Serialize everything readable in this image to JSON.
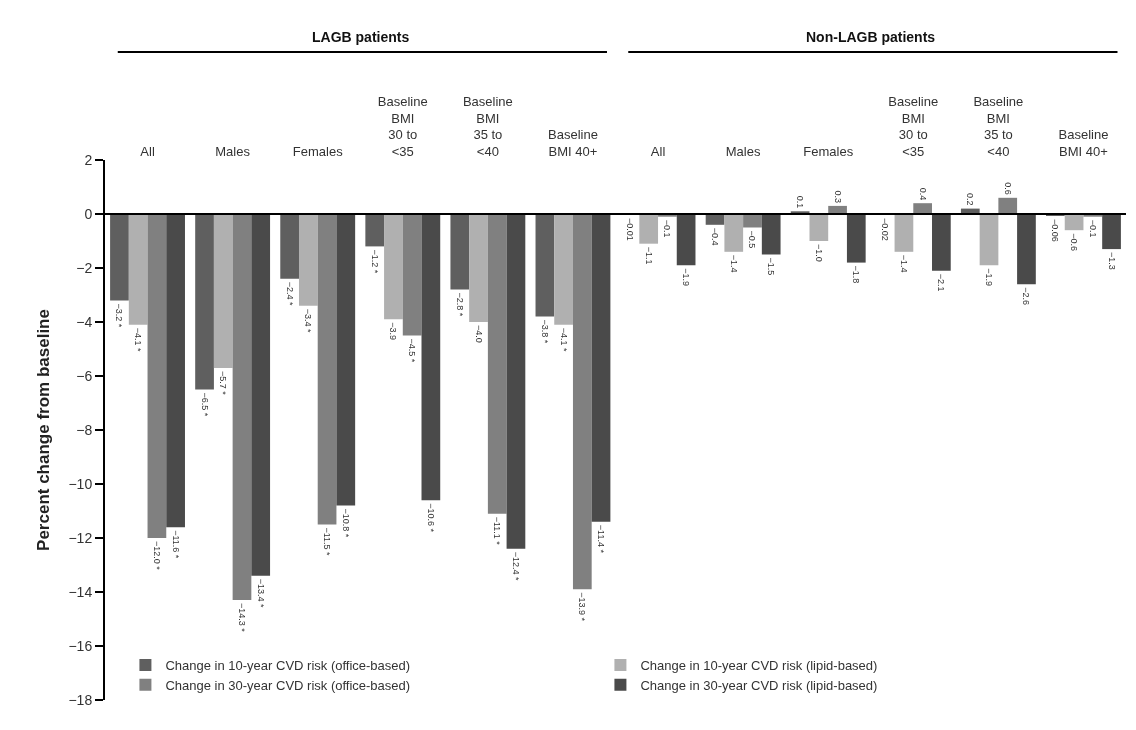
{
  "chart_data": {
    "type": "bar",
    "ylabel": "Percent change from baseline",
    "categories": [
      "All",
      "Males",
      "Females",
      "Baseline\nBMI\n30 to\n<35",
      "Baseline\nBMI\n35 to\n<40",
      "Baseline\nBMI 40+",
      "All",
      "Males",
      "Females",
      "Baseline\nBMI\n30 to\n<35",
      "Baseline\nBMI\n35 to\n<40",
      "Baseline\nBMI 40+"
    ],
    "series": [
      {
        "name": "Change in 10-year CVD risk (office-based)",
        "color": "#5f5f5f",
        "values": [
          -3.2,
          -6.5,
          -2.4,
          -1.2,
          -2.8,
          -3.8,
          -0.01,
          -0.4,
          0.1,
          -0.02,
          0.2,
          -0.06
        ],
        "value_labels": [
          "−3.2 *",
          "−6.5 *",
          "−2.4 *",
          "−1.2 *",
          "−2.8 *",
          "−3.8 *",
          "−0.01",
          "−0.4",
          "0.1",
          "−0.02",
          "0.2",
          "−0.06"
        ]
      },
      {
        "name": "Change in 10-year CVD risk (lipid-based)",
        "color": "#b0b0b0",
        "values": [
          -4.1,
          -5.7,
          -3.4,
          -3.9,
          -4.0,
          -4.1,
          -1.1,
          -1.4,
          -1.0,
          -1.4,
          -1.9,
          -0.6
        ],
        "value_labels": [
          "−4.1 *",
          "−5.7 *",
          "−3.4 *",
          "−3.9",
          "−4.0",
          "−4.1 *",
          "−1.1",
          "−1.4",
          "−1.0",
          "−1.4",
          "−1.9",
          "−0.6"
        ]
      },
      {
        "name": "Change in 30-year CVD risk (office-based)",
        "color": "#808080",
        "values": [
          -12.0,
          -14.3,
          -11.5,
          -4.5,
          -11.1,
          -13.9,
          -0.1,
          -0.5,
          0.3,
          0.4,
          0.6,
          -0.1
        ],
        "value_labels": [
          "−12.0 *",
          "−14.3 *",
          "−11.5 *",
          "−4.5 *",
          "−11.1 *",
          "−13.9 *",
          "−0.1",
          "−0.5",
          "0.3",
          "0.4",
          "0.6",
          "−0.1"
        ]
      },
      {
        "name": "Change in 30-year CVD risk (lipid-based)",
        "color": "#4a4a4a",
        "values": [
          -11.6,
          -13.4,
          -10.8,
          -10.6,
          -12.4,
          -11.4,
          -1.9,
          -1.5,
          -1.8,
          -2.1,
          -2.6,
          -1.3
        ],
        "value_labels": [
          "−11.6 *",
          "−13.4 *",
          "−10.8 *",
          "−10.6 *",
          "−12.4 *",
          "−11.4 *",
          "−1.9",
          "−1.5",
          "−1.8",
          "−2.1",
          "−2.6",
          "−1.3"
        ]
      }
    ],
    "annotations": [
      "LAGB patients",
      "Non-LAGB patients"
    ],
    "ylim": [
      -18,
      2
    ],
    "yticks": [
      {
        "value": -18,
        "label": "−18"
      },
      {
        "value": -16,
        "label": "−16"
      },
      {
        "value": -14,
        "label": "−14"
      },
      {
        "value": -12,
        "label": "−12"
      },
      {
        "value": -10,
        "label": "−10"
      },
      {
        "value": -8,
        "label": "−8"
      },
      {
        "value": -6,
        "label": "−6"
      },
      {
        "value": -4,
        "label": "−4"
      },
      {
        "value": -2,
        "label": "−2"
      },
      0,
      2
    ],
    "ref_lines": [
      {
        "axis": "y",
        "value": 0
      }
    ],
    "legend": "bottom"
  }
}
